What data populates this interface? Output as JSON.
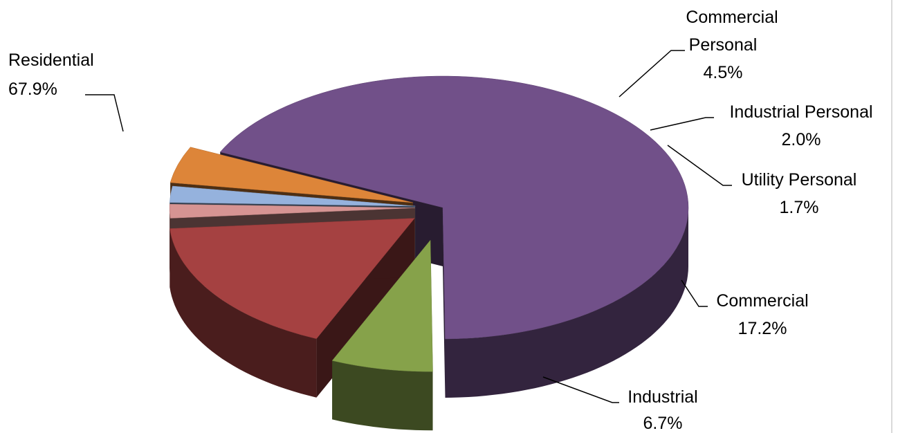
{
  "chart_data": {
    "type": "pie",
    "style": "3d-exploded",
    "title": "",
    "slices": [
      {
        "label": "Residential",
        "value": 67.9,
        "display": "67.9%",
        "color": "#715089"
      },
      {
        "label": "Industrial",
        "value": 6.7,
        "display": "6.7%",
        "color": "#86A24A"
      },
      {
        "label": "Commercial",
        "value": 17.2,
        "display": "17.2%",
        "color": "#A54141"
      },
      {
        "label": "Utility Personal",
        "value": 1.7,
        "display": "1.7%",
        "color": "#D69493"
      },
      {
        "label": "Industrial Personal",
        "value": 2.0,
        "display": "2.0%",
        "color": "#95B2DD"
      },
      {
        "label": "Commercial Personal",
        "value": 4.5,
        "display": "4.5%",
        "color": "#DD8539"
      }
    ]
  }
}
